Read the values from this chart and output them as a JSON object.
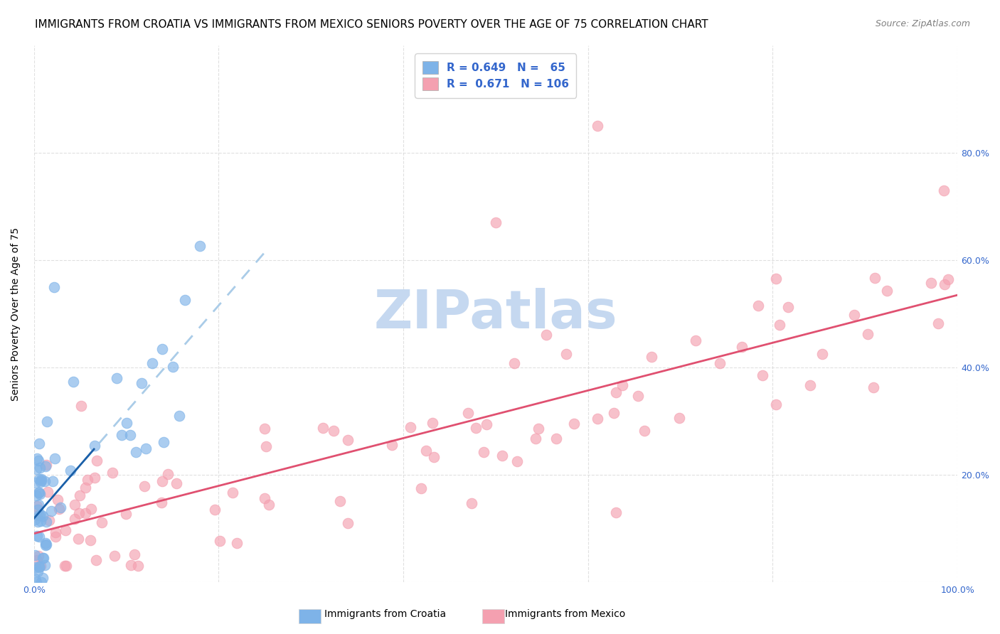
{
  "title": "IMMIGRANTS FROM CROATIA VS IMMIGRANTS FROM MEXICO SENIORS POVERTY OVER THE AGE OF 75 CORRELATION CHART",
  "source": "Source: ZipAtlas.com",
  "ylabel": "Seniors Poverty Over the Age of 75",
  "xlim": [
    0,
    1.0
  ],
  "ylim": [
    0,
    1.0
  ],
  "croatia_R": 0.649,
  "croatia_N": 65,
  "mexico_R": 0.671,
  "mexico_N": 106,
  "croatia_color": "#7EB3E8",
  "mexico_color": "#F4A0B0",
  "croatia_line_color": "#1A5FA8",
  "mexico_line_color": "#E05070",
  "croatia_line_dashed_color": "#AACCE8",
  "background_color": "#FFFFFF",
  "grid_color": "#DDDDDD",
  "watermark_color": "#C5D8F0",
  "legend_label_croatia": "Immigrants from Croatia",
  "legend_label_mexico": "Immigrants from Mexico",
  "title_fontsize": 11,
  "source_fontsize": 9,
  "axis_fontsize": 9,
  "legend_fontsize": 11,
  "ylabel_fontsize": 10,
  "tick_color": "#3366CC"
}
